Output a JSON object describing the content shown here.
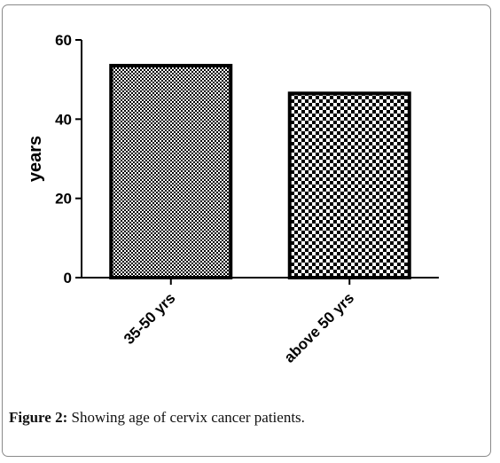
{
  "caption": {
    "label": "Figure 2:",
    "text": " Showing age of cervix cancer patients."
  },
  "chart_data": {
    "type": "bar",
    "categories": [
      "35-50 yrs",
      "above 50 yrs"
    ],
    "values": [
      53.5,
      46.5
    ],
    "title": "",
    "xlabel": "",
    "ylabel": "years",
    "ylim": [
      0,
      60
    ],
    "yticks": [
      "0",
      "20",
      "40",
      "60"
    ],
    "grid": false,
    "legend": "none",
    "bar_fill": [
      "dense-checker",
      "coarse-checker"
    ],
    "bar_stroke": "#000000"
  }
}
